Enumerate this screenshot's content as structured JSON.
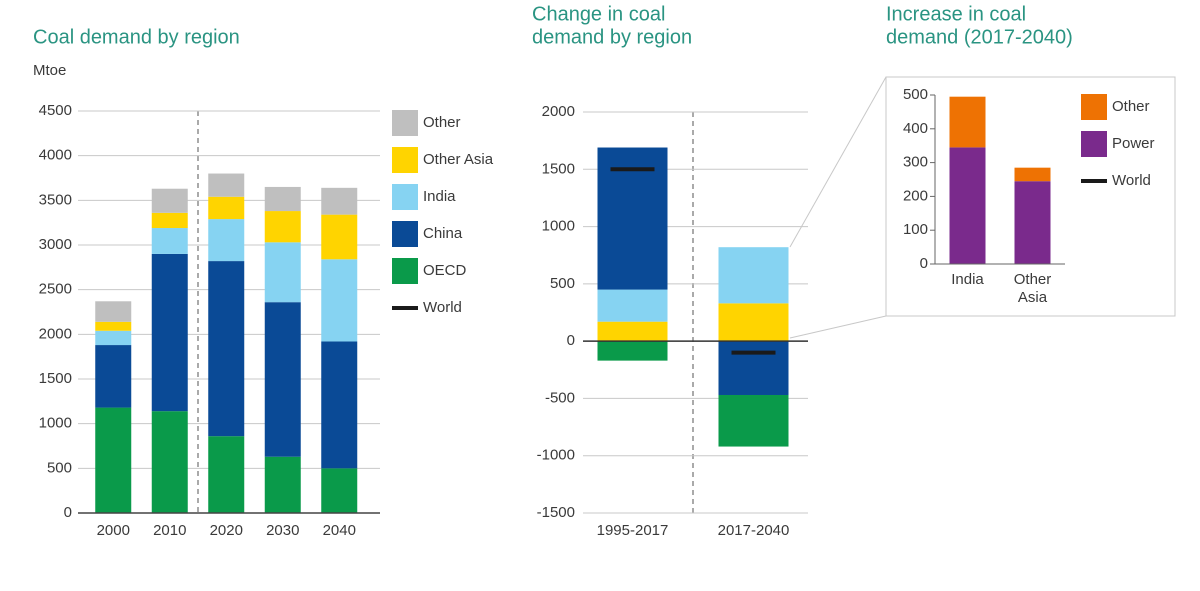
{
  "chart_data": [
    {
      "type": "bar",
      "stacked": true,
      "title": [
        "Coal demand by region"
      ],
      "ylabel": "Mtoe",
      "categories": [
        "2000",
        "2010",
        "2020",
        "2030",
        "2040"
      ],
      "ylim": [
        0,
        4500
      ],
      "yticks": [
        0,
        500,
        1000,
        1500,
        2000,
        2500,
        3000,
        3500,
        4000,
        4500
      ],
      "grid": true,
      "series": [
        {
          "name": "OECD",
          "color": "#0a9a4a",
          "values": [
            1180,
            1140,
            860,
            630,
            500
          ]
        },
        {
          "name": "China",
          "color": "#0a4a96",
          "values": [
            700,
            1760,
            1960,
            1730,
            1420
          ]
        },
        {
          "name": "India",
          "color": "#86d3f2",
          "values": [
            160,
            290,
            470,
            670,
            920
          ]
        },
        {
          "name": "Other Asia",
          "color": "#ffd400",
          "values": [
            100,
            170,
            250,
            350,
            500
          ]
        },
        {
          "name": "Other",
          "color": "#bfbfbf",
          "values": [
            230,
            270,
            260,
            270,
            300
          ]
        }
      ]
    },
    {
      "type": "bar",
      "stacked": true,
      "title": [
        "Change in coal",
        "demand by region"
      ],
      "categories": [
        "1995-2017",
        "2017-2040"
      ],
      "ylim": [
        -1500,
        2000
      ],
      "yticks": [
        -1500,
        -1000,
        -500,
        0,
        500,
        1000,
        1500,
        2000
      ],
      "grid": true,
      "series": [
        {
          "color": "#ffd400",
          "values": [
            170,
            330
          ]
        },
        {
          "color": "#86d3f2",
          "values": [
            280,
            490
          ]
        },
        {
          "color": "#0a4a96",
          "values": [
            1240,
            -470
          ]
        },
        {
          "color": "#0a9a4a",
          "values": [
            -170,
            -450
          ]
        }
      ],
      "world": {
        "name": "World",
        "color": "#1a1a1a",
        "values": [
          1500,
          -100
        ]
      }
    },
    {
      "type": "bar",
      "stacked": true,
      "title": [
        "Increase in coal",
        "demand (2017-2040)"
      ],
      "categories": [
        "India",
        "Other Asia"
      ],
      "ylim": [
        0,
        500
      ],
      "yticks": [
        0,
        100,
        200,
        300,
        400,
        500
      ],
      "grid": false,
      "series": [
        {
          "name": "Power",
          "color": "#7a2a8c",
          "values": [
            345,
            245
          ]
        },
        {
          "name": "Other",
          "color": "#ee7203",
          "values": [
            150,
            40
          ]
        }
      ]
    }
  ]
}
